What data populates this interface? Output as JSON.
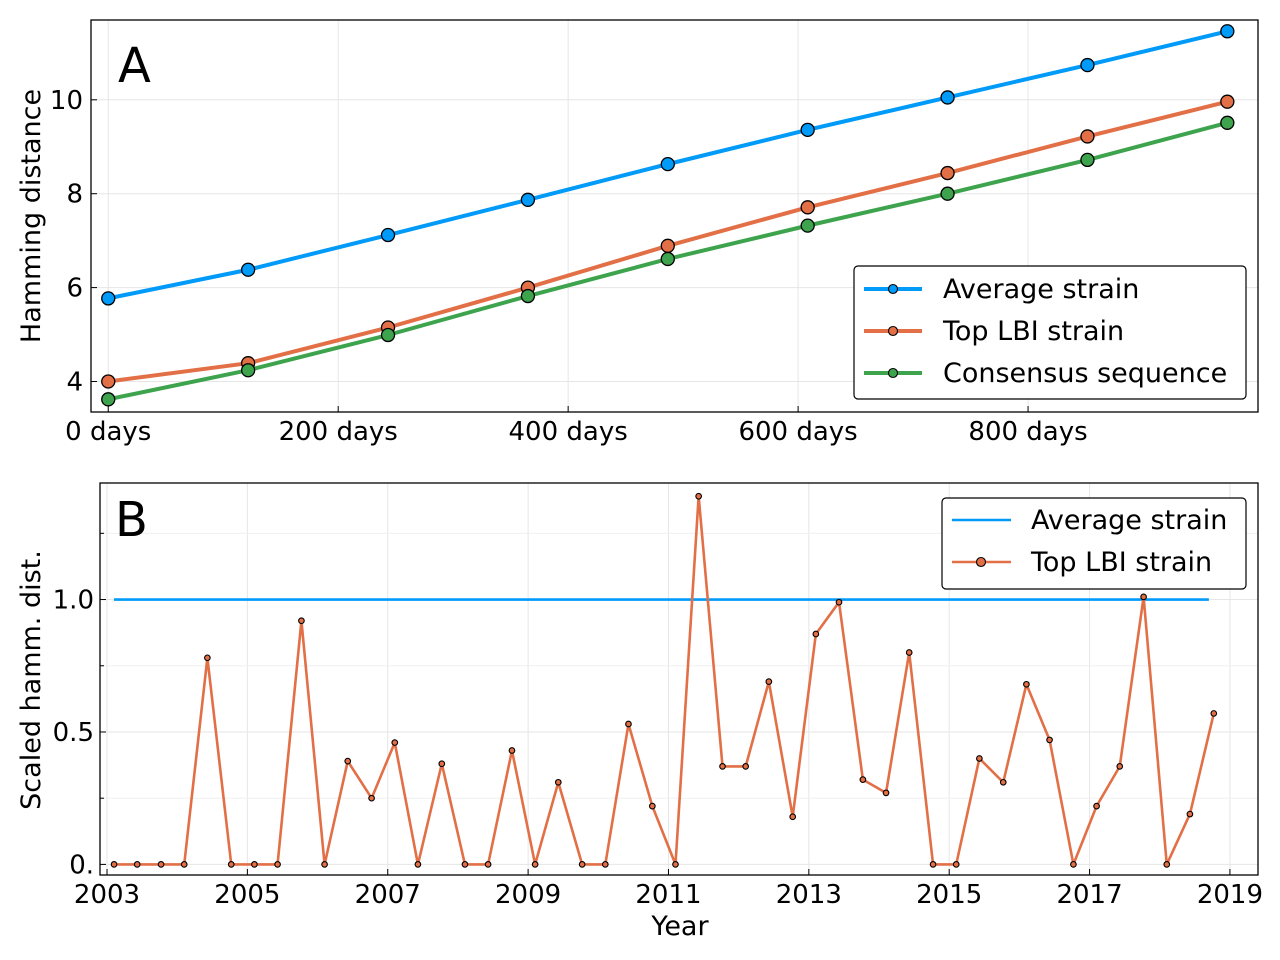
{
  "chart_data": [
    {
      "type": "line",
      "panel_label": "A",
      "xlabel": "",
      "ylabel": "Hamming distance",
      "x": [
        0,
        121.67,
        243.33,
        365,
        486.67,
        608.33,
        730,
        851.67,
        973.33
      ],
      "xlim": [
        -15,
        1000
      ],
      "ylim": [
        3.35,
        11.7
      ],
      "xticks": [
        0,
        200,
        400,
        600,
        800
      ],
      "xtick_labels": [
        "0 days",
        "200 days",
        "400 days",
        "600 days",
        "800 days"
      ],
      "yticks": [
        4,
        6,
        8,
        10
      ],
      "ytick_labels": [
        "4",
        "6",
        "8",
        "10"
      ],
      "grid": true,
      "legend_position": "bottom-right",
      "series": [
        {
          "name": "Average strain",
          "color": "#009af9",
          "values": [
            5.77,
            6.38,
            7.12,
            7.87,
            8.63,
            9.36,
            10.05,
            10.74,
            11.46
          ]
        },
        {
          "name": "Top LBI strain",
          "color": "#e26f46",
          "values": [
            4.0,
            4.39,
            5.15,
            6.0,
            6.89,
            7.71,
            8.44,
            9.22,
            9.96
          ]
        },
        {
          "name": "Consensus sequence",
          "color": "#3da44d",
          "values": [
            3.62,
            4.24,
            4.99,
            5.82,
            6.61,
            7.32,
            8.0,
            8.72,
            9.51
          ]
        }
      ]
    },
    {
      "type": "line",
      "panel_label": "B",
      "xlabel": "Year",
      "ylabel": "Scaled hamm. dist.",
      "xlim": [
        2002.9,
        2019.4
      ],
      "ylim": [
        -0.04,
        1.44
      ],
      "xticks": [
        2003,
        2005,
        2007,
        2009,
        2011,
        2013,
        2015,
        2017,
        2019
      ],
      "xtick_labels": [
        "2003",
        "2005",
        "2007",
        "2009",
        "2011",
        "2013",
        "2015",
        "2017",
        "2019"
      ],
      "yticks": [
        0,
        0.5,
        1.0
      ],
      "ytick_labels": [
        "0.",
        "0.5",
        "1.0"
      ],
      "grid": true,
      "legend_position": "top-right",
      "series": [
        {
          "name": "Average strain",
          "color": "#009af9",
          "x": [
            2003.1,
            2018.7
          ],
          "values": [
            1.0,
            1.0
          ]
        },
        {
          "name": "Top LBI strain",
          "color": "#e26f46",
          "x": [
            2003.1,
            2003.43,
            2003.77,
            2004.1,
            2004.43,
            2004.77,
            2005.1,
            2005.43,
            2005.77,
            2006.1,
            2006.43,
            2006.77,
            2007.1,
            2007.43,
            2007.77,
            2008.1,
            2008.43,
            2008.77,
            2009.1,
            2009.43,
            2009.77,
            2010.1,
            2010.43,
            2010.77,
            2011.1,
            2011.43,
            2011.77,
            2012.1,
            2012.43,
            2012.77,
            2013.1,
            2013.43,
            2013.77,
            2014.1,
            2014.43,
            2014.77,
            2015.1,
            2015.43,
            2015.77,
            2016.1,
            2016.43,
            2016.77,
            2017.1,
            2017.43,
            2017.77,
            2018.1,
            2018.43,
            2018.77
          ],
          "values": [
            0,
            0,
            0,
            0,
            0.78,
            0,
            0,
            0,
            0.92,
            0,
            0.39,
            0.25,
            0.46,
            0,
            0.38,
            0,
            0,
            0.43,
            0,
            0.31,
            0,
            0,
            0.53,
            0.22,
            0,
            1.39,
            0.37,
            0.37,
            0.69,
            0.18,
            0.87,
            0.99,
            0.32,
            0.27,
            0.8,
            0,
            0,
            0.4,
            0.31,
            0.68,
            0.47,
            0,
            0.22,
            0.37,
            1.01,
            0,
            0.19,
            0.57
          ]
        }
      ]
    }
  ]
}
